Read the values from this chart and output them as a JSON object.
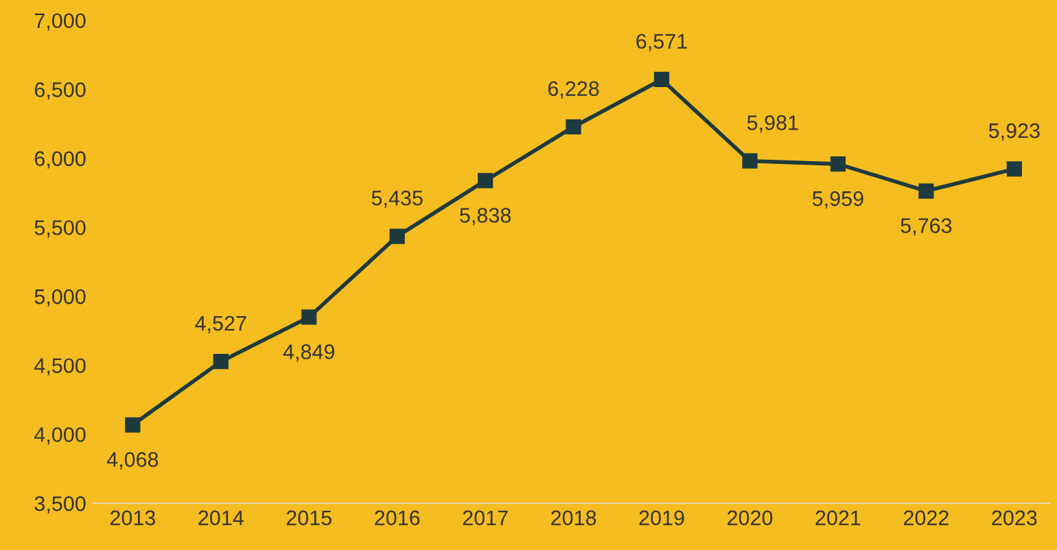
{
  "chart_data": {
    "type": "line",
    "categories": [
      "2013",
      "2014",
      "2015",
      "2016",
      "2017",
      "2018",
      "2019",
      "2020",
      "2021",
      "2022",
      "2023"
    ],
    "series": [
      {
        "color": "#1d3a3f",
        "values": [
          4068,
          4527,
          4849,
          5435,
          5838,
          6228,
          6571,
          5981,
          5959,
          5763,
          5923
        ],
        "value_labels": [
          "4,068",
          "4,527",
          "4,849",
          "5,435",
          "5,838",
          "6,228",
          "6,571",
          "5,981",
          "5,959",
          "5,763",
          "5,923"
        ]
      }
    ],
    "ylim": [
      3500,
      7000
    ],
    "yticks": [
      {
        "value": 3500,
        "label": "3,500"
      },
      {
        "value": 4000,
        "label": "4,000"
      },
      {
        "value": 4500,
        "label": "4,500"
      },
      {
        "value": 5000,
        "label": "5,000"
      },
      {
        "value": 5500,
        "label": "5,500"
      },
      {
        "value": 6000,
        "label": "6,000"
      },
      {
        "value": 6500,
        "label": "6,500"
      },
      {
        "value": 7000,
        "label": "7,000"
      }
    ],
    "marker": "square",
    "line_style": "solid",
    "grid": false,
    "legend": false
  }
}
